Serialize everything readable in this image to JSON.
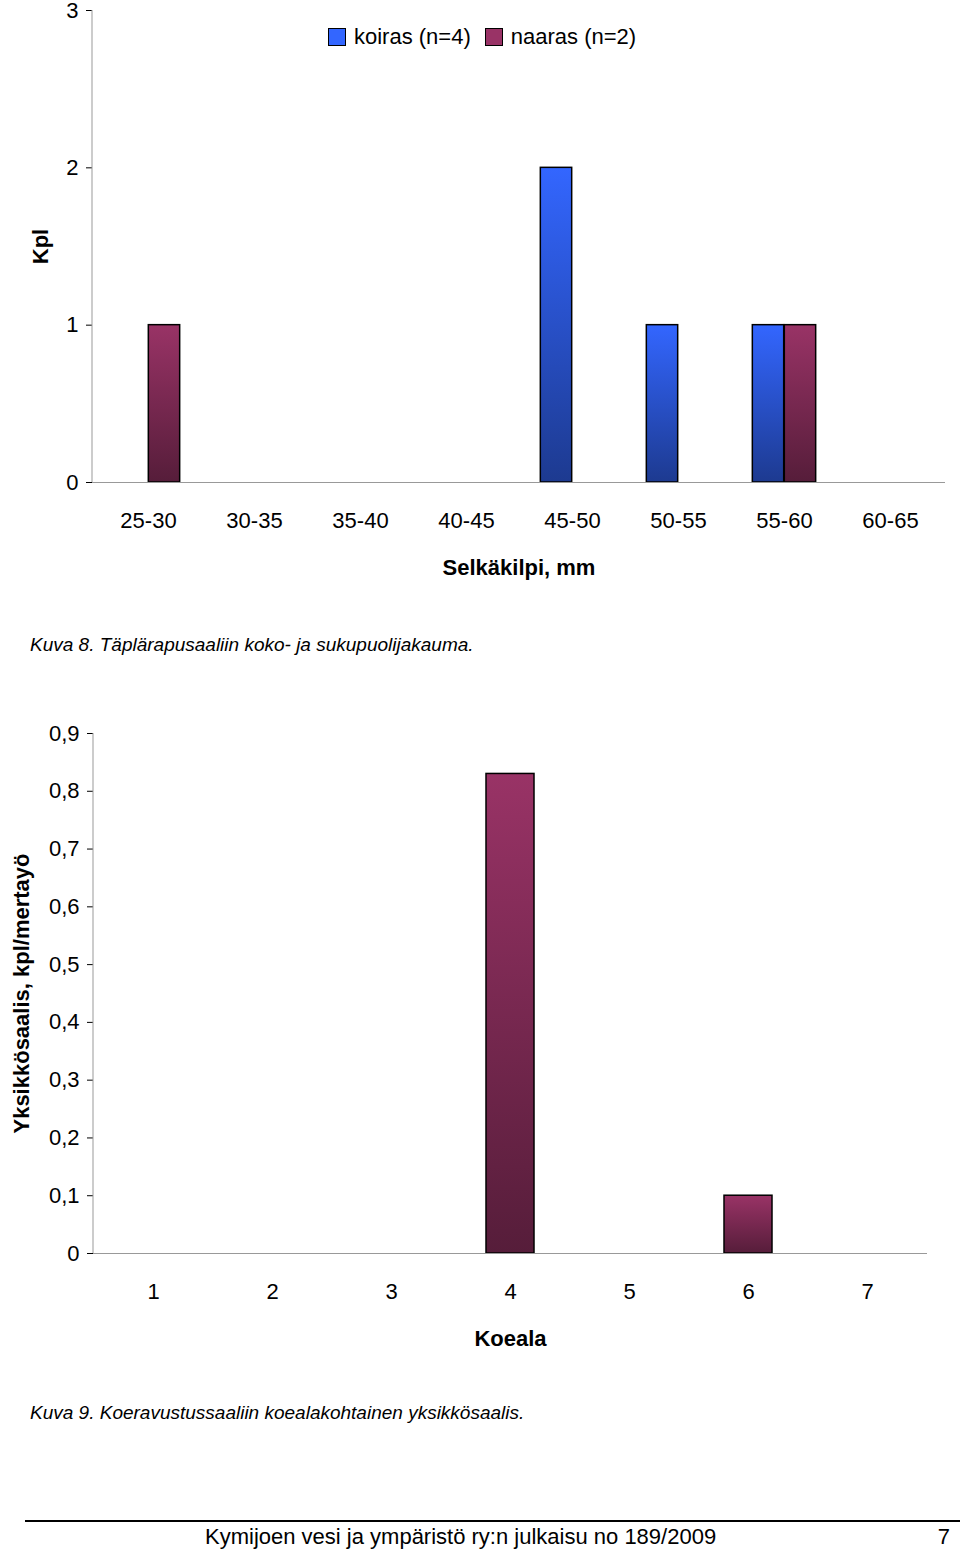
{
  "chart_data": [
    {
      "type": "bar",
      "caption": "Kuva 8. Täplärapusaaliin koko- ja sukupuolijakauma.",
      "x_label": "Selkäkilpi, mm",
      "y_label": "Kpl",
      "categories": [
        "25-30",
        "30-35",
        "35-40",
        "40-45",
        "45-50",
        "50-55",
        "55-60",
        "60-65"
      ],
      "series": [
        {
          "name": "koiras (n=4)",
          "color": "#3366ff",
          "values": [
            0,
            0,
            0,
            0,
            2,
            1,
            1,
            0
          ]
        },
        {
          "name": "naaras (n=2)",
          "color": "#993366",
          "values": [
            1,
            0,
            0,
            0,
            0,
            0,
            1,
            0
          ]
        }
      ],
      "ylim": [
        0,
        3
      ],
      "yticks": [
        0,
        1,
        2,
        3
      ],
      "legend": "top"
    },
    {
      "type": "bar",
      "caption": "Kuva 9. Koeravustussaaliin koealakohtainen yksikkösaalis.",
      "x_label": "Koeala",
      "y_label": "Yksikkösaalis, kpl/mertayö",
      "categories": [
        "1",
        "2",
        "3",
        "4",
        "5",
        "6",
        "7"
      ],
      "values": [
        0,
        0,
        0,
        0.83,
        0,
        0.1,
        0
      ],
      "color": "#993366",
      "ylim": [
        0,
        0.9
      ],
      "yticks": [
        0,
        {
          "value": 0.1,
          "label": "0,1"
        },
        {
          "value": 0.2,
          "label": "0,2"
        },
        {
          "value": 0.3,
          "label": "0,3"
        },
        {
          "value": 0.4,
          "label": "0,4"
        },
        {
          "value": 0.5,
          "label": "0,5"
        },
        {
          "value": 0.6,
          "label": "0,6"
        },
        {
          "value": 0.7,
          "label": "0,7"
        },
        {
          "value": 0.8,
          "label": "0,8"
        },
        {
          "value": 0.9,
          "label": "0,9"
        }
      ]
    }
  ],
  "footer": {
    "text": "Kymijoen vesi ja ympäristö ry:n julkaisu no 189/2009",
    "page": "7"
  }
}
